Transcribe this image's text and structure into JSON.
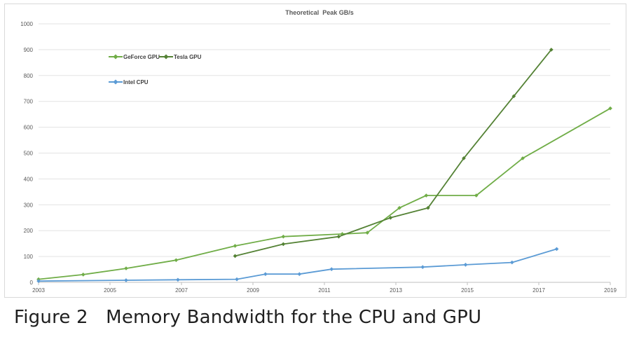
{
  "caption": "Figure 2   Memory Bandwidth for the CPU and GPU",
  "chart_data": {
    "type": "line",
    "title": "Theoretical  Peak GB/s",
    "xlabel": "",
    "ylabel": "",
    "xlim": [
      2003,
      2019
    ],
    "ylim": [
      0,
      1000
    ],
    "xticks": [
      2003,
      2005,
      2007,
      2009,
      2011,
      2013,
      2015,
      2017,
      2019
    ],
    "yticks": [
      0,
      100,
      200,
      300,
      400,
      500,
      600,
      700,
      800,
      900,
      1000
    ],
    "grid": "horizontal",
    "legend_position": "top-left",
    "series": [
      {
        "name": "GeForce GPU",
        "color": "#70ad47",
        "points": [
          [
            2003.0,
            12
          ],
          [
            2004.25,
            30
          ],
          [
            2005.45,
            54
          ],
          [
            2006.85,
            86
          ],
          [
            2008.5,
            141
          ],
          [
            2009.85,
            177
          ],
          [
            2011.5,
            187
          ],
          [
            2012.2,
            192
          ],
          [
            2013.1,
            288
          ],
          [
            2013.85,
            336
          ],
          [
            2015.25,
            336
          ],
          [
            2016.55,
            480
          ],
          [
            2019.0,
            673
          ]
        ]
      },
      {
        "name": "Tesla GPU",
        "color": "#548235",
        "points": [
          [
            2008.5,
            102
          ],
          [
            2009.85,
            148
          ],
          [
            2011.4,
            177
          ],
          [
            2012.85,
            250
          ],
          [
            2013.9,
            288
          ],
          [
            2014.9,
            480
          ],
          [
            2016.3,
            720
          ],
          [
            2017.35,
            900
          ]
        ]
      },
      {
        "name": "Intel CPU",
        "color": "#5b9bd5",
        "points": [
          [
            2003.0,
            5
          ],
          [
            2005.45,
            8
          ],
          [
            2006.9,
            10
          ],
          [
            2008.55,
            12
          ],
          [
            2009.35,
            32
          ],
          [
            2010.3,
            32
          ],
          [
            2011.2,
            51
          ],
          [
            2013.75,
            59
          ],
          [
            2014.95,
            68
          ],
          [
            2016.25,
            77
          ],
          [
            2017.5,
            129
          ]
        ]
      }
    ]
  }
}
